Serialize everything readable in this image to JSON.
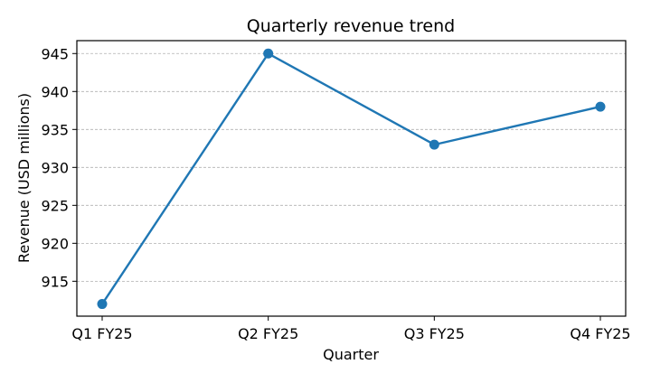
{
  "chart_data": {
    "type": "line",
    "title": "Quarterly revenue trend",
    "xlabel": "Quarter",
    "ylabel": "Revenue (USD millions)",
    "categories": [
      "Q1 FY25",
      "Q2 FY25",
      "Q3 FY25",
      "Q4 FY25"
    ],
    "series": [
      {
        "name": "Revenue",
        "values": [
          912,
          945,
          933,
          938
        ],
        "color": "#1f77b4"
      }
    ],
    "ylim": [
      910.4,
      946.7
    ],
    "yticks": [
      915,
      920,
      925,
      930,
      935,
      940,
      945
    ],
    "grid": true,
    "grid_axis": "y"
  }
}
